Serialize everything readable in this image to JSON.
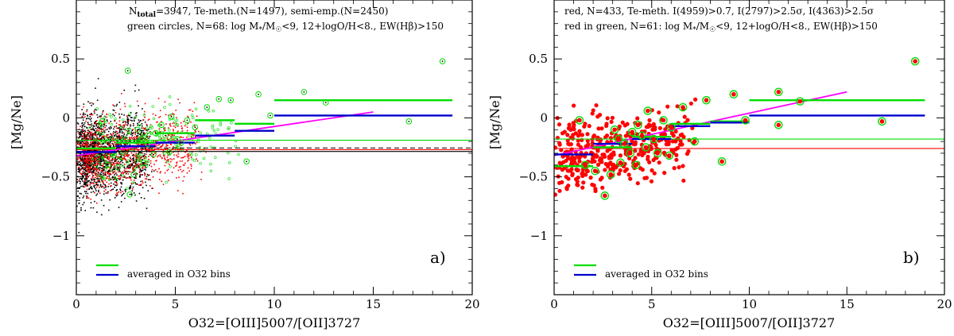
{
  "chart_data": [
    {
      "type": "scatter",
      "panel_label": "a)",
      "xlabel": "O32=[OIII]5007/[OII]3727",
      "ylabel": "[Mg/Ne]",
      "xlim": [
        0,
        20
      ],
      "ylim": [
        -1.5,
        1.0
      ],
      "x_ticks": [
        "0",
        "5",
        "10",
        "15",
        "20"
      ],
      "y_ticks": [
        "-1",
        "-0.5",
        "0",
        "0.5"
      ],
      "annotations": [
        "N_total=3947, Te-meth.(N=1497), semi-emp.(N=2450)",
        "green circles, N=68: log M*/M☉<9, 12+logO/H<8., EW(Hβ)>150"
      ],
      "legend": {
        "green": "",
        "blue": "averaged in O32 bins",
        "placement": "bottom-left"
      },
      "series_info": [
        {
          "name": "semi-empirical",
          "color": "black",
          "n": 2450
        },
        {
          "name": "Te-method",
          "color": "red",
          "n": 1497
        },
        {
          "name": "selected (green circles)",
          "color": "green",
          "n": 68
        }
      ],
      "hlines": [
        {
          "y": -0.19,
          "color": "#00dd00",
          "style": "solid"
        },
        {
          "y": -0.27,
          "color": "#ff0000",
          "style": "solid"
        },
        {
          "y": -0.255,
          "color": "#000000",
          "style": "dashed"
        },
        {
          "y": -0.285,
          "color": "#000000",
          "style": "solid"
        }
      ],
      "fit_line": {
        "x": [
          0,
          15
        ],
        "y": [
          -0.32,
          0.05
        ],
        "color": "#ff00ff"
      },
      "bins_green": [
        {
          "x0": 0,
          "x1": 2,
          "y": -0.26
        },
        {
          "x0": 2,
          "x1": 4,
          "y": -0.21
        },
        {
          "x0": 4,
          "x1": 6,
          "y": -0.13
        },
        {
          "x0": 6,
          "x1": 8,
          "y": -0.02
        },
        {
          "x0": 8,
          "x1": 10,
          "y": -0.05
        },
        {
          "x0": 10,
          "x1": 19,
          "y": 0.15
        }
      ],
      "bins_blue": [
        {
          "x0": 0,
          "x1": 2,
          "y": -0.29
        },
        {
          "x0": 2,
          "x1": 4,
          "y": -0.24
        },
        {
          "x0": 4,
          "x1": 6,
          "y": -0.21
        },
        {
          "x0": 6,
          "x1": 8,
          "y": -0.15
        },
        {
          "x0": 8,
          "x1": 10,
          "y": -0.11
        },
        {
          "x0": 10,
          "x1": 19,
          "y": 0.02
        }
      ],
      "highlight_points": [
        {
          "x": 18.5,
          "y": 0.48
        },
        {
          "x": 11.5,
          "y": 0.22
        },
        {
          "x": 12.6,
          "y": 0.13
        },
        {
          "x": 16.8,
          "y": -0.03
        },
        {
          "x": 9.2,
          "y": 0.2
        },
        {
          "x": 8.6,
          "y": -0.37
        },
        {
          "x": 7.8,
          "y": 0.15
        },
        {
          "x": 7.2,
          "y": 0.16
        },
        {
          "x": 6.6,
          "y": 0.09
        },
        {
          "x": 5.6,
          "y": -0.02
        },
        {
          "x": 5.3,
          "y": -0.21
        },
        {
          "x": 4.8,
          "y": 0.01
        },
        {
          "x": 4.3,
          "y": -0.06
        },
        {
          "x": 2.6,
          "y": 0.4
        },
        {
          "x": 2.7,
          "y": -0.65
        },
        {
          "x": 3.9,
          "y": -0.31
        },
        {
          "x": 9.8,
          "y": 0.02
        },
        {
          "x": 4.7,
          "y": -0.29
        },
        {
          "x": 4.0,
          "y": -0.13
        },
        {
          "x": 5.1,
          "y": -0.18
        },
        {
          "x": 3.3,
          "y": -0.18
        },
        {
          "x": 2.1,
          "y": -0.42
        },
        {
          "x": 1.3,
          "y": -0.03
        },
        {
          "x": 1.6,
          "y": -0.4
        },
        {
          "x": 3.6,
          "y": -0.22
        },
        {
          "x": 3.1,
          "y": -0.1
        },
        {
          "x": 2.9,
          "y": -0.48
        },
        {
          "x": 6.0,
          "y": -0.08
        },
        {
          "x": 4.5,
          "y": -0.15
        },
        {
          "x": 3.4,
          "y": -0.38
        }
      ]
    },
    {
      "type": "scatter",
      "panel_label": "b)",
      "xlabel": "O32=[OIII]5007/[OII]3727",
      "ylabel": "[Mg/Ne]",
      "xlim": [
        0,
        20
      ],
      "ylim": [
        -1.5,
        1.0
      ],
      "x_ticks": [
        "0",
        "5",
        "10",
        "15",
        "20"
      ],
      "y_ticks": [
        "-1",
        "-0.5",
        "0",
        "0.5"
      ],
      "annotations": [
        "red, N=433, Te-meth. I(4959)>0.7, I(2797)>2.5σ, I(4363)>2.5σ",
        "red in green, N=61: log M*/M☉<9, 12+logO/H<8., EW(Hβ)>150"
      ],
      "legend": {
        "green": "",
        "blue": "averaged in O32 bins",
        "placement": "bottom-left"
      },
      "series_info": [
        {
          "name": "Te-method",
          "color": "red",
          "n": 433
        },
        {
          "name": "selected (red in green)",
          "color": "green",
          "n": 61
        }
      ],
      "hlines": [
        {
          "y": -0.18,
          "color": "#00dd00",
          "style": "solid"
        },
        {
          "y": -0.26,
          "color": "#ff0000",
          "style": "solid"
        }
      ],
      "fit_line": {
        "x": [
          0,
          15
        ],
        "y": [
          -0.32,
          0.22
        ],
        "color": "#ff00ff"
      },
      "bins_green": [
        {
          "x0": 0,
          "x1": 2,
          "y": -0.41
        },
        {
          "x0": 2,
          "x1": 4,
          "y": -0.25
        },
        {
          "x0": 4,
          "x1": 6,
          "y": -0.16
        },
        {
          "x0": 6,
          "x1": 8,
          "y": -0.05
        },
        {
          "x0": 8,
          "x1": 10,
          "y": -0.03
        },
        {
          "x0": 10,
          "x1": 19,
          "y": 0.15
        }
      ],
      "bins_blue": [
        {
          "x0": 0,
          "x1": 2,
          "y": -0.31
        },
        {
          "x0": 2,
          "x1": 4,
          "y": -0.22
        },
        {
          "x0": 4,
          "x1": 6,
          "y": -0.18
        },
        {
          "x0": 6,
          "x1": 8,
          "y": -0.07
        },
        {
          "x0": 8,
          "x1": 10,
          "y": -0.04
        },
        {
          "x0": 10,
          "x1": 19,
          "y": 0.02
        }
      ],
      "highlight_points": [
        {
          "x": 18.5,
          "y": 0.48
        },
        {
          "x": 11.5,
          "y": 0.22
        },
        {
          "x": 12.6,
          "y": 0.14
        },
        {
          "x": 16.8,
          "y": -0.03
        },
        {
          "x": 9.2,
          "y": 0.2
        },
        {
          "x": 8.6,
          "y": -0.37
        },
        {
          "x": 7.8,
          "y": 0.15
        },
        {
          "x": 7.2,
          "y": -0.2
        },
        {
          "x": 6.6,
          "y": 0.09
        },
        {
          "x": 5.6,
          "y": -0.02
        },
        {
          "x": 5.3,
          "y": -0.3
        },
        {
          "x": 4.8,
          "y": 0.06
        },
        {
          "x": 4.3,
          "y": -0.06
        },
        {
          "x": 2.6,
          "y": -0.66
        },
        {
          "x": 3.9,
          "y": -0.3
        },
        {
          "x": 9.8,
          "y": -0.02
        },
        {
          "x": 4.7,
          "y": -0.25
        },
        {
          "x": 4.0,
          "y": -0.12
        },
        {
          "x": 5.1,
          "y": -0.18
        },
        {
          "x": 3.3,
          "y": -0.18
        },
        {
          "x": 2.1,
          "y": -0.45
        },
        {
          "x": 1.3,
          "y": -0.02
        },
        {
          "x": 1.6,
          "y": -0.4
        },
        {
          "x": 3.6,
          "y": -0.22
        },
        {
          "x": 3.1,
          "y": -0.1
        },
        {
          "x": 2.9,
          "y": -0.48
        },
        {
          "x": 6.0,
          "y": -0.08
        },
        {
          "x": 4.5,
          "y": -0.15
        },
        {
          "x": 3.4,
          "y": -0.38
        },
        {
          "x": 11.5,
          "y": -0.06
        },
        {
          "x": 5.9,
          "y": -0.32
        },
        {
          "x": 4.2,
          "y": -0.4
        }
      ]
    }
  ],
  "colors": {
    "black_points": "#000000",
    "red_points": "#ff0000",
    "green": "#00dd00",
    "blue": "#0000cc",
    "magenta": "#ff00ff"
  }
}
